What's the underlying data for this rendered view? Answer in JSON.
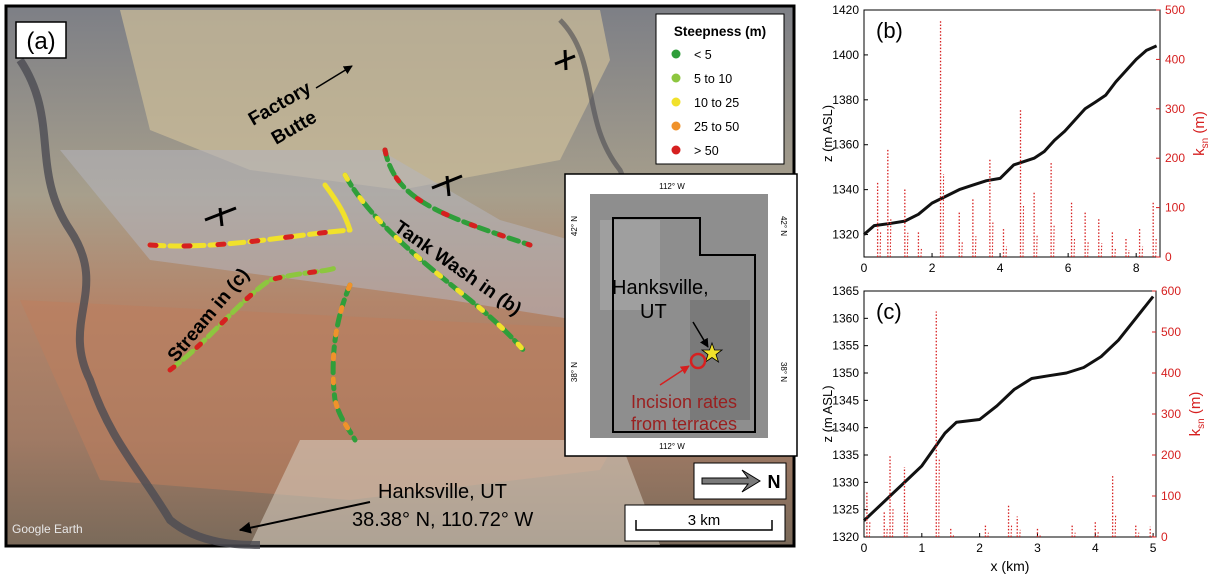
{
  "panel_a": {
    "label": "(a)",
    "legend": {
      "title": "Steepness (m)",
      "items": [
        {
          "label": "< 5",
          "color": "#2f9e3a"
        },
        {
          "label": "5 to 10",
          "color": "#8dc63f"
        },
        {
          "label": "10 to 25",
          "color": "#f1e12b"
        },
        {
          "label": "25 to 50",
          "color": "#f0922b"
        },
        {
          "label": "> 50",
          "color": "#d62020"
        }
      ]
    },
    "labels": {
      "factory_butte_1": "Factory",
      "factory_butte_2": "Butte",
      "tank_wash": "Tank Wash in (b)",
      "stream_c": "Stream in (c)",
      "hanksville_1": "Hanksville, UT",
      "hanksville_2": "38.38° N, 110.72° W",
      "google_earth": "Google Earth"
    },
    "inset": {
      "top_lon": "112° W",
      "bottom_lon": "112° W",
      "left_lat_top": "42° N",
      "right_lat_top": "42° N",
      "left_lat_bottom": "38° N",
      "right_lat_bottom": "38° N",
      "town_1": "Hanksville,",
      "town_2": "UT",
      "note_1": "Incision rates",
      "note_2": "from terraces"
    },
    "north_label": "N",
    "scale_label": "3 km"
  },
  "chart_data": [
    {
      "type": "line",
      "panel_label": "(b)",
      "xlim": [
        0,
        8.7
      ],
      "ylim": [
        1310,
        1420
      ],
      "y2lim": [
        0,
        500
      ],
      "xticks": [
        0,
        2,
        4,
        6,
        8
      ],
      "yticks": [
        1320,
        1340,
        1360,
        1380,
        1400,
        1420
      ],
      "y2ticks": [
        0,
        100,
        200,
        300,
        400,
        500
      ],
      "ylabel": "z (m ASL)",
      "y2label_main": "k",
      "y2label_sub": "sn",
      "y2label_unit": " (m)",
      "series": [
        {
          "axis": "left",
          "color": "#111111",
          "x": [
            0,
            0.3,
            0.8,
            1.2,
            1.6,
            2.0,
            2.4,
            2.8,
            3.2,
            3.6,
            4.0,
            4.4,
            4.6,
            5.0,
            5.3,
            5.6,
            5.9,
            6.2,
            6.5,
            6.8,
            7.1,
            7.4,
            7.7,
            8.0,
            8.3,
            8.6
          ],
          "y": [
            1320,
            1324,
            1325,
            1326,
            1329,
            1334,
            1337,
            1340,
            1342,
            1344,
            1345,
            1351,
            1352,
            1354,
            1357,
            1362,
            1366,
            1371,
            1376,
            1379,
            1382,
            1388,
            1393,
            1398,
            1402,
            1404
          ]
        },
        {
          "axis": "right",
          "color": "#d62020",
          "style": "dotted",
          "x": [
            0.4,
            0.7,
            1.2,
            1.6,
            2.25,
            2.8,
            3.2,
            3.7,
            4.1,
            4.6,
            5.0,
            5.5,
            6.1,
            6.5,
            6.9,
            7.3,
            7.7,
            8.1,
            8.5
          ],
          "y": [
            150,
            220,
            140,
            50,
            480,
            90,
            120,
            200,
            60,
            300,
            130,
            190,
            110,
            90,
            80,
            50,
            40,
            60,
            110
          ]
        }
      ]
    },
    {
      "type": "line",
      "panel_label": "(c)",
      "xlim": [
        0,
        5.05
      ],
      "ylim": [
        1320,
        1365
      ],
      "y2lim": [
        0,
        600
      ],
      "xticks": [
        0,
        1,
        2,
        3,
        4,
        5
      ],
      "yticks": [
        1320,
        1325,
        1330,
        1335,
        1340,
        1345,
        1350,
        1355,
        1360,
        1365
      ],
      "y2ticks": [
        0,
        100,
        200,
        300,
        400,
        500,
        600
      ],
      "xlabel": "x (km)",
      "ylabel": "z (m ASL)",
      "y2label_main": "k",
      "y2label_sub": "sn",
      "y2label_unit": " (m)",
      "series": [
        {
          "axis": "left",
          "color": "#111111",
          "x": [
            0,
            0.2,
            0.5,
            0.8,
            1.0,
            1.2,
            1.4,
            1.6,
            2.0,
            2.3,
            2.6,
            2.9,
            3.2,
            3.5,
            3.8,
            4.1,
            4.4,
            4.7,
            5.0
          ],
          "y": [
            1323,
            1325,
            1328,
            1331,
            1333,
            1336,
            1339,
            1341,
            1341.5,
            1344,
            1347,
            1349,
            1349.5,
            1350,
            1351,
            1353,
            1356,
            1360,
            1364
          ]
        },
        {
          "axis": "right",
          "color": "#d62020",
          "style": "dotted",
          "x": [
            0.05,
            0.35,
            0.45,
            0.7,
            1.25,
            1.5,
            2.1,
            2.5,
            2.65,
            3.0,
            3.6,
            4.0,
            4.3,
            4.7,
            4.95
          ],
          "y": [
            110,
            60,
            200,
            170,
            550,
            20,
            30,
            80,
            50,
            20,
            30,
            40,
            150,
            30,
            25
          ]
        }
      ]
    }
  ]
}
